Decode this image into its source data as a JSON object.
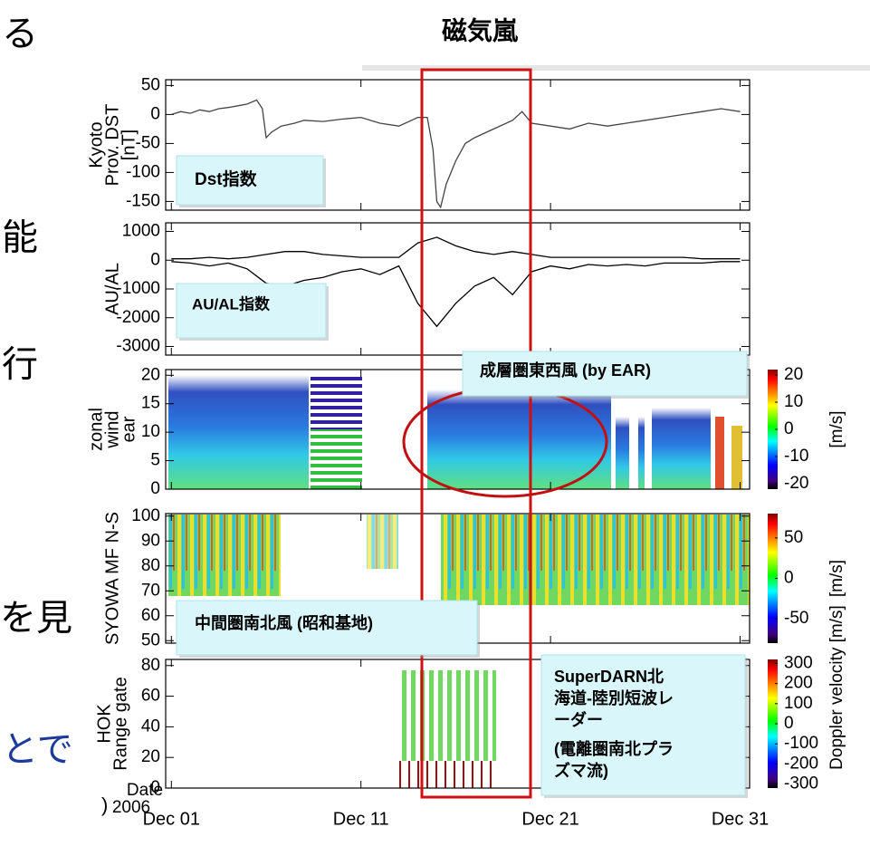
{
  "title": "磁気嵐",
  "background_text": [
    "る",
    "能",
    "行",
    "を見",
    "とで",
    ")"
  ],
  "x_axis": {
    "xlim": [
      0.7,
      31.5
    ],
    "xticks": [
      {
        "value": 1,
        "label": "Dec 01"
      },
      {
        "value": 11,
        "label": "Dec 11"
      },
      {
        "value": 21,
        "label": "Dec 21"
      },
      {
        "value": 31,
        "label": "Dec 31"
      }
    ],
    "label": "Date",
    "year": "2006"
  },
  "chart_data": [
    {
      "type": "line",
      "ylabel": [
        "Kyoto",
        "Prov. DST",
        "[nT]"
      ],
      "ylim": [
        -165,
        60
      ],
      "yticks": [
        50,
        0,
        -50,
        -100,
        -150
      ],
      "x": [
        1,
        1.5,
        2,
        2.5,
        3,
        3.5,
        4,
        4.5,
        5,
        5.5,
        5.8,
        6.0,
        6.3,
        6.8,
        7.5,
        8,
        9,
        10,
        11,
        12,
        13,
        14,
        14.5,
        14.8,
        15.0,
        15.2,
        15.5,
        16,
        16.5,
        17,
        18,
        19,
        19.5,
        20,
        21,
        22,
        23,
        24,
        25,
        26,
        27,
        28,
        29,
        30,
        31
      ],
      "series": [
        {
          "color": "#444444",
          "values": [
            0,
            5,
            2,
            8,
            5,
            10,
            12,
            15,
            18,
            25,
            10,
            -40,
            -30,
            -20,
            -15,
            -10,
            -12,
            -8,
            -5,
            -15,
            -20,
            -5,
            -5,
            -60,
            -150,
            -160,
            -120,
            -80,
            -50,
            -40,
            -25,
            -10,
            5,
            -15,
            -20,
            -25,
            -15,
            -20,
            -15,
            -10,
            -5,
            0,
            5,
            10,
            5
          ]
        }
      ]
    },
    {
      "type": "line",
      "ylabel": [
        "AU/AL"
      ],
      "ylim": [
        -3300,
        1300
      ],
      "yticks": [
        1000,
        0,
        -1000,
        -2000,
        -3000
      ],
      "x": [
        1,
        2,
        3,
        4,
        5,
        6,
        7,
        8,
        9,
        10,
        11,
        12,
        13,
        14,
        15,
        16,
        17,
        18,
        19,
        20,
        21,
        22,
        23,
        24,
        25,
        26,
        27,
        28,
        29,
        30,
        31
      ],
      "series": [
        {
          "color": "#000000",
          "values": [
            50,
            50,
            100,
            50,
            100,
            200,
            300,
            300,
            200,
            150,
            100,
            100,
            100,
            600,
            800,
            500,
            300,
            200,
            300,
            200,
            100,
            100,
            100,
            100,
            100,
            100,
            100,
            100,
            50,
            50,
            50
          ]
        },
        {
          "color": "#000000",
          "values": [
            -50,
            -100,
            -200,
            -100,
            -300,
            -800,
            -900,
            -700,
            -600,
            -400,
            -300,
            -500,
            -200,
            -1500,
            -2300,
            -1500,
            -900,
            -600,
            -1200,
            -400,
            -200,
            -300,
            -150,
            -200,
            -150,
            -200,
            -100,
            -100,
            -100,
            -50,
            -50
          ]
        }
      ]
    },
    {
      "type": "heatmap",
      "ylabel": [
        "zonal",
        "wind",
        "ear"
      ],
      "ylim": [
        0,
        21
      ],
      "yticks": [
        20,
        15,
        10,
        5,
        0
      ],
      "colorbar": {
        "clim": [
          -22,
          22
        ],
        "ticks": [
          20,
          10,
          0,
          -10,
          -20
        ],
        "label": "[m/s]"
      }
    },
    {
      "type": "heatmap",
      "ylabel": [
        "SYOWA MF N-S"
      ],
      "ylim": [
        49,
        101
      ],
      "yticks": [
        100,
        90,
        80,
        70,
        60,
        50
      ],
      "colorbar": {
        "clim": [
          -80,
          80
        ],
        "ticks": [
          50,
          0,
          -50
        ],
        "label": "[m/s]"
      }
    },
    {
      "type": "heatmap",
      "ylabel": [
        "HOK",
        "Range gate"
      ],
      "ylim": [
        0,
        84
      ],
      "yticks": [
        80,
        60,
        40,
        20,
        0
      ],
      "colorbar": {
        "clim": [
          -320,
          320
        ],
        "ticks": [
          300,
          200,
          100,
          0,
          -100,
          -200,
          -300
        ],
        "label": "Doppler velocity [m/s]"
      }
    }
  ],
  "annotations": [
    {
      "lines": [
        "Dst指数"
      ]
    },
    {
      "lines": [
        "AU/AL指数"
      ]
    },
    {
      "lines": [
        "成層圏東西風 (by EAR)"
      ]
    },
    {
      "lines": [
        "中間圏南北風 (昭和基地)"
      ]
    },
    {
      "lines": [
        "SuperDARN北",
        "海道-陸別短波レ",
        "ーダー",
        "(電離圏南北プラ",
        "ズマ流)"
      ]
    }
  ]
}
